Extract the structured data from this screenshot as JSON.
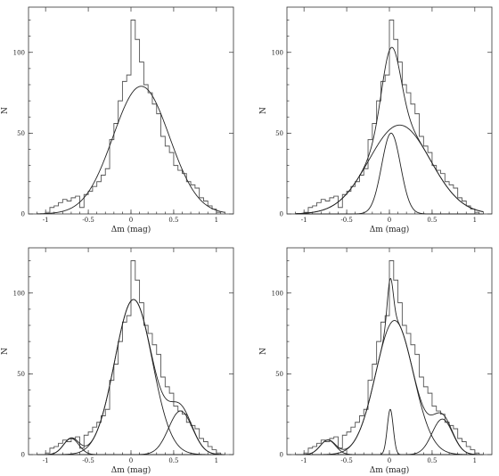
{
  "chart_data": [
    {
      "type": "histogram",
      "xlabel": "Δm (mag)",
      "ylabel": "N",
      "xlim": [
        -1.2,
        1.2
      ],
      "ylim": [
        0,
        128
      ],
      "xticks": [
        -1,
        -0.5,
        0,
        0.5,
        1
      ],
      "xtick_labels": [
        "-1",
        "-0.5",
        "0",
        "0.5",
        "1"
      ],
      "yticks": [
        0,
        50,
        100
      ],
      "ytick_labels": [
        "0",
        "50",
        "100"
      ],
      "hist": {
        "bin_width": 0.05,
        "bin_centers": [
          -0.975,
          -0.925,
          -0.875,
          -0.825,
          -0.775,
          -0.725,
          -0.675,
          -0.625,
          -0.575,
          -0.525,
          -0.475,
          -0.425,
          -0.375,
          -0.325,
          -0.275,
          -0.225,
          -0.175,
          -0.125,
          -0.075,
          -0.025,
          0.025,
          0.075,
          0.125,
          0.175,
          0.225,
          0.275,
          0.325,
          0.375,
          0.425,
          0.475,
          0.525,
          0.575,
          0.625,
          0.675,
          0.725,
          0.775,
          0.825,
          0.875,
          0.925,
          0.975,
          1.025
        ],
        "counts": [
          1,
          4,
          5,
          7,
          9,
          8,
          10,
          11,
          4,
          12,
          14,
          17,
          20,
          24,
          28,
          46,
          56,
          70,
          82,
          86,
          120,
          108,
          94,
          80,
          75,
          68,
          62,
          48,
          42,
          38,
          30,
          27,
          25,
          20,
          18,
          16,
          10,
          8,
          5,
          3,
          1
        ]
      },
      "components": [
        {
          "amplitude": 79,
          "mean": 0.12,
          "sigma": 0.33
        }
      ],
      "show_total": false
    },
    {
      "type": "histogram",
      "xlabel": "Δm (mag)",
      "ylabel": "N",
      "xlim": [
        -1.2,
        1.2
      ],
      "ylim": [
        0,
        128
      ],
      "xticks": [
        -1,
        -0.5,
        0,
        0.5,
        1
      ],
      "xtick_labels": [
        "-1",
        "-0.5",
        "0",
        "0.5",
        "1"
      ],
      "yticks": [
        0,
        50,
        100
      ],
      "ytick_labels": [
        "0",
        "50",
        "100"
      ],
      "hist": {
        "bin_width": 0.05,
        "bin_centers": [
          -0.975,
          -0.925,
          -0.875,
          -0.825,
          -0.775,
          -0.725,
          -0.675,
          -0.625,
          -0.575,
          -0.525,
          -0.475,
          -0.425,
          -0.375,
          -0.325,
          -0.275,
          -0.225,
          -0.175,
          -0.125,
          -0.075,
          -0.025,
          0.025,
          0.075,
          0.125,
          0.175,
          0.225,
          0.275,
          0.325,
          0.375,
          0.425,
          0.475,
          0.525,
          0.575,
          0.625,
          0.675,
          0.725,
          0.775,
          0.825,
          0.875,
          0.925,
          0.975,
          1.025
        ],
        "counts": [
          1,
          4,
          5,
          7,
          9,
          8,
          10,
          11,
          4,
          12,
          14,
          17,
          20,
          24,
          28,
          46,
          56,
          70,
          82,
          86,
          120,
          108,
          94,
          80,
          75,
          68,
          62,
          48,
          42,
          38,
          30,
          27,
          25,
          20,
          18,
          16,
          10,
          8,
          5,
          3,
          1
        ]
      },
      "components": [
        {
          "amplitude": 50,
          "mean": 0.02,
          "sigma": 0.11
        },
        {
          "amplitude": 55,
          "mean": 0.12,
          "sigma": 0.36
        }
      ],
      "show_total": true
    },
    {
      "type": "histogram",
      "xlabel": "Δm (mag)",
      "ylabel": "N",
      "xlim": [
        -1.2,
        1.2
      ],
      "ylim": [
        0,
        128
      ],
      "xticks": [
        -1,
        -0.5,
        0,
        0.5,
        1
      ],
      "xtick_labels": [
        "-1",
        "-0.5",
        "0",
        "0.5",
        "1"
      ],
      "yticks": [
        0,
        50,
        100
      ],
      "ytick_labels": [
        "0",
        "50",
        "100"
      ],
      "hist": {
        "bin_width": 0.05,
        "bin_centers": [
          -0.975,
          -0.925,
          -0.875,
          -0.825,
          -0.775,
          -0.725,
          -0.675,
          -0.625,
          -0.575,
          -0.525,
          -0.475,
          -0.425,
          -0.375,
          -0.325,
          -0.275,
          -0.225,
          -0.175,
          -0.125,
          -0.075,
          -0.025,
          0.025,
          0.075,
          0.125,
          0.175,
          0.225,
          0.275,
          0.325,
          0.375,
          0.425,
          0.475,
          0.525,
          0.575,
          0.625,
          0.675,
          0.725,
          0.775,
          0.825,
          0.875,
          0.925,
          0.975,
          1.025
        ],
        "counts": [
          1,
          4,
          5,
          7,
          9,
          8,
          10,
          11,
          4,
          12,
          14,
          17,
          20,
          24,
          28,
          46,
          56,
          70,
          82,
          86,
          120,
          108,
          94,
          80,
          75,
          68,
          62,
          48,
          42,
          38,
          30,
          27,
          25,
          20,
          18,
          16,
          10,
          8,
          5,
          3,
          1
        ]
      },
      "components": [
        {
          "amplitude": 10,
          "mean": -0.7,
          "sigma": 0.09
        },
        {
          "amplitude": 96,
          "mean": 0.03,
          "sigma": 0.22
        },
        {
          "amplitude": 27,
          "mean": 0.58,
          "sigma": 0.14
        }
      ],
      "show_total": true
    },
    {
      "type": "histogram",
      "xlabel": "Δm (mag)",
      "ylabel": "N",
      "xlim": [
        -1.2,
        1.2
      ],
      "ylim": [
        0,
        128
      ],
      "xticks": [
        -1,
        -0.5,
        0,
        0.5,
        1
      ],
      "xtick_labels": [
        "-1",
        "-0.5",
        "0",
        "0.5",
        "1"
      ],
      "yticks": [
        0,
        50,
        100
      ],
      "ytick_labels": [
        "0",
        "50",
        "100"
      ],
      "hist": {
        "bin_width": 0.05,
        "bin_centers": [
          -0.975,
          -0.925,
          -0.875,
          -0.825,
          -0.775,
          -0.725,
          -0.675,
          -0.625,
          -0.575,
          -0.525,
          -0.475,
          -0.425,
          -0.375,
          -0.325,
          -0.275,
          -0.225,
          -0.175,
          -0.125,
          -0.075,
          -0.025,
          0.025,
          0.075,
          0.125,
          0.175,
          0.225,
          0.275,
          0.325,
          0.375,
          0.425,
          0.475,
          0.525,
          0.575,
          0.625,
          0.675,
          0.725,
          0.775,
          0.825,
          0.875,
          0.925,
          0.975,
          1.025
        ],
        "counts": [
          1,
          4,
          5,
          7,
          9,
          8,
          10,
          11,
          4,
          12,
          14,
          17,
          20,
          24,
          28,
          46,
          56,
          70,
          82,
          86,
          120,
          108,
          94,
          80,
          75,
          68,
          62,
          48,
          42,
          38,
          30,
          27,
          25,
          20,
          18,
          16,
          10,
          8,
          5,
          3,
          1
        ]
      },
      "components": [
        {
          "amplitude": 9,
          "mean": -0.72,
          "sigma": 0.09
        },
        {
          "amplitude": 28,
          "mean": 0.01,
          "sigma": 0.035
        },
        {
          "amplitude": 83,
          "mean": 0.06,
          "sigma": 0.22
        },
        {
          "amplitude": 22,
          "mean": 0.62,
          "sigma": 0.12
        }
      ],
      "show_total": true
    }
  ]
}
